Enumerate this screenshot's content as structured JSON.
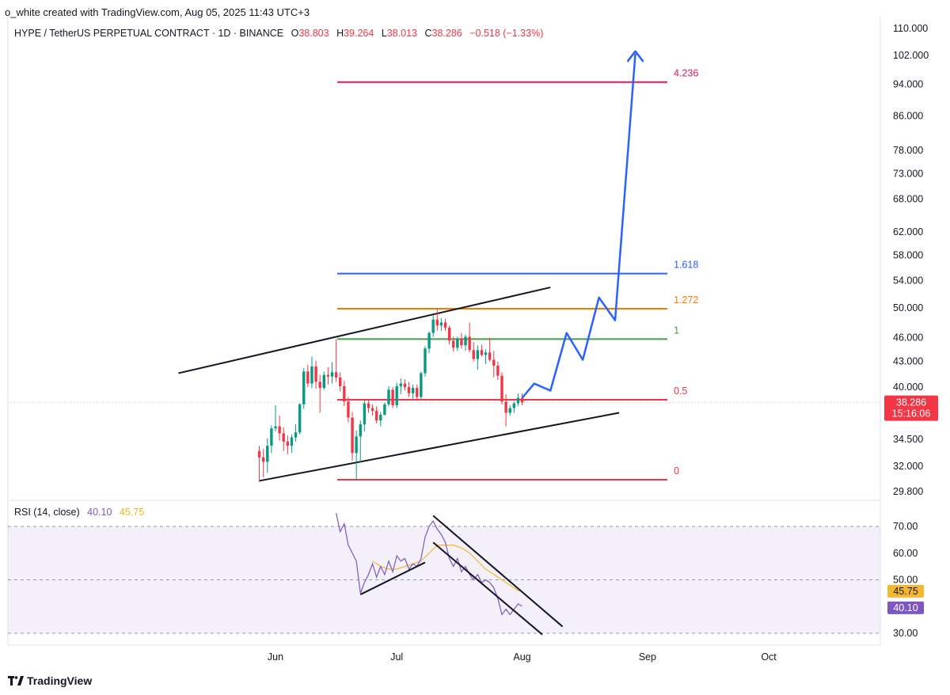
{
  "attribution": "o_white created with TradingView.com, Aug 05, 2025 11:43 UTC+3",
  "legend": {
    "symbol": "HYPE / TetherUS PERPETUAL CONTRACT · 1D · BINANCE",
    "open_label": "O",
    "open": "38.803",
    "high_label": "H",
    "high": "39.264",
    "low_label": "L",
    "low": "38.013",
    "close_label": "C",
    "close": "38.286",
    "change": "−0.518 (−1.33%)"
  },
  "rsi_legend": {
    "label": "RSI (14, close)",
    "rsi_value": "40.10",
    "ma_value": "45.75"
  },
  "footer": {
    "brand": "TradingView"
  },
  "colors": {
    "up": "#089981",
    "down": "#f23645",
    "projection": "#2962ff",
    "rsi": "#7e57c2",
    "rsi_ma": "#f5b82e"
  },
  "chart_data": [
    {
      "type": "candlestick",
      "title": "HYPE / TetherUS PERPETUAL CONTRACT · 1D · BINANCE",
      "y_scale": "log",
      "yticks": [
        "110.000",
        "102.000",
        "94.000",
        "86.000",
        "78.000",
        "73.000",
        "68.000",
        "62.000",
        "58.000",
        "54.000",
        "50.000",
        "46.000",
        "43.000",
        "40.000",
        "34.500",
        "32.000",
        "29.800"
      ],
      "xticks": [
        "Jun",
        "Jul",
        "Aug",
        "Sep",
        "Oct"
      ],
      "last_price": "38.286",
      "countdown": "15:16:06",
      "fib_levels": [
        {
          "label": "4.236",
          "value": 94.6,
          "color": "#d81b60"
        },
        {
          "label": "1.618",
          "value": 55.1,
          "color": "#2962ff"
        },
        {
          "label": "1.272",
          "value": 49.9,
          "color": "#f57c00"
        },
        {
          "label": "1",
          "value": 45.8,
          "color": "#43a047"
        },
        {
          "label": "0.5",
          "value": 38.6,
          "color": "#f23645"
        },
        {
          "label": "0",
          "value": 30.8,
          "color": "#f23645"
        }
      ],
      "candles": [
        {
          "d": "2025-05-28",
          "o": 33.4,
          "h": 33.9,
          "l": 30.6,
          "c": 32.8
        },
        {
          "d": "2025-05-29",
          "o": 32.8,
          "h": 33.6,
          "l": 31.0,
          "c": 32.4
        },
        {
          "d": "2025-05-30",
          "o": 32.4,
          "h": 34.6,
          "l": 31.4,
          "c": 33.9
        },
        {
          "d": "2025-05-31",
          "o": 33.9,
          "h": 35.9,
          "l": 33.2,
          "c": 35.6
        },
        {
          "d": "2025-06-01",
          "o": 35.6,
          "h": 38.0,
          "l": 35.3,
          "c": 35.8
        },
        {
          "d": "2025-06-02",
          "o": 35.8,
          "h": 36.9,
          "l": 34.4,
          "c": 35.1
        },
        {
          "d": "2025-06-03",
          "o": 35.1,
          "h": 35.7,
          "l": 33.4,
          "c": 34.3
        },
        {
          "d": "2025-06-04",
          "o": 34.3,
          "h": 34.9,
          "l": 33.1,
          "c": 33.9
        },
        {
          "d": "2025-06-05",
          "o": 33.9,
          "h": 35.0,
          "l": 33.2,
          "c": 34.7
        },
        {
          "d": "2025-06-06",
          "o": 34.7,
          "h": 36.0,
          "l": 34.3,
          "c": 35.2
        },
        {
          "d": "2025-06-07",
          "o": 35.2,
          "h": 38.2,
          "l": 35.0,
          "c": 38.1
        },
        {
          "d": "2025-06-08",
          "o": 38.1,
          "h": 42.2,
          "l": 37.6,
          "c": 41.8
        },
        {
          "d": "2025-06-09",
          "o": 41.8,
          "h": 42.6,
          "l": 40.0,
          "c": 40.4
        },
        {
          "d": "2025-06-10",
          "o": 40.4,
          "h": 43.6,
          "l": 39.9,
          "c": 42.4
        },
        {
          "d": "2025-06-11",
          "o": 42.4,
          "h": 43.1,
          "l": 39.8,
          "c": 40.6
        },
        {
          "d": "2025-06-12",
          "o": 40.6,
          "h": 41.4,
          "l": 37.2,
          "c": 39.9
        },
        {
          "d": "2025-06-13",
          "o": 39.9,
          "h": 41.8,
          "l": 39.7,
          "c": 41.4
        },
        {
          "d": "2025-06-14",
          "o": 41.4,
          "h": 42.3,
          "l": 40.3,
          "c": 41.2
        },
        {
          "d": "2025-06-15",
          "o": 41.2,
          "h": 42.9,
          "l": 40.4,
          "c": 41.7
        },
        {
          "d": "2025-06-16",
          "o": 41.7,
          "h": 45.8,
          "l": 40.6,
          "c": 41.1
        },
        {
          "d": "2025-06-17",
          "o": 41.1,
          "h": 41.7,
          "l": 39.5,
          "c": 40.1
        },
        {
          "d": "2025-06-18",
          "o": 40.1,
          "h": 40.7,
          "l": 37.9,
          "c": 38.4
        },
        {
          "d": "2025-06-19",
          "o": 38.4,
          "h": 38.9,
          "l": 36.2,
          "c": 36.7
        },
        {
          "d": "2025-06-20",
          "o": 36.7,
          "h": 37.3,
          "l": 32.5,
          "c": 33.2
        },
        {
          "d": "2025-06-21",
          "o": 33.2,
          "h": 35.4,
          "l": 30.8,
          "c": 34.8
        },
        {
          "d": "2025-06-22",
          "o": 34.8,
          "h": 36.4,
          "l": 32.3,
          "c": 36.0
        },
        {
          "d": "2025-06-23",
          "o": 36.0,
          "h": 38.6,
          "l": 35.3,
          "c": 38.2
        },
        {
          "d": "2025-06-24",
          "o": 38.2,
          "h": 38.5,
          "l": 37.2,
          "c": 37.7
        },
        {
          "d": "2025-06-25",
          "o": 37.7,
          "h": 38.1,
          "l": 36.9,
          "c": 37.4
        },
        {
          "d": "2025-06-26",
          "o": 37.4,
          "h": 37.9,
          "l": 36.1,
          "c": 36.4
        },
        {
          "d": "2025-06-27",
          "o": 36.4,
          "h": 37.3,
          "l": 35.8,
          "c": 37.0
        },
        {
          "d": "2025-06-28",
          "o": 37.0,
          "h": 38.3,
          "l": 36.9,
          "c": 38.1
        },
        {
          "d": "2025-06-29",
          "o": 38.1,
          "h": 40.1,
          "l": 37.9,
          "c": 39.7
        },
        {
          "d": "2025-06-30",
          "o": 39.7,
          "h": 40.0,
          "l": 37.7,
          "c": 38.0
        },
        {
          "d": "2025-07-01",
          "o": 38.0,
          "h": 40.5,
          "l": 37.7,
          "c": 40.1
        },
        {
          "d": "2025-07-02",
          "o": 40.1,
          "h": 41.0,
          "l": 39.2,
          "c": 40.4
        },
        {
          "d": "2025-07-03",
          "o": 40.4,
          "h": 40.9,
          "l": 39.6,
          "c": 40.0
        },
        {
          "d": "2025-07-04",
          "o": 40.0,
          "h": 40.6,
          "l": 38.9,
          "c": 39.3
        },
        {
          "d": "2025-07-05",
          "o": 39.3,
          "h": 40.3,
          "l": 38.7,
          "c": 39.9
        },
        {
          "d": "2025-07-06",
          "o": 39.9,
          "h": 40.3,
          "l": 38.6,
          "c": 38.9
        },
        {
          "d": "2025-07-07",
          "o": 38.9,
          "h": 41.8,
          "l": 38.7,
          "c": 41.6
        },
        {
          "d": "2025-07-08",
          "o": 41.6,
          "h": 44.9,
          "l": 41.2,
          "c": 44.6
        },
        {
          "d": "2025-07-09",
          "o": 44.6,
          "h": 46.8,
          "l": 44.0,
          "c": 46.6
        },
        {
          "d": "2025-07-10",
          "o": 46.6,
          "h": 49.0,
          "l": 46.1,
          "c": 48.4
        },
        {
          "d": "2025-07-11",
          "o": 48.4,
          "h": 49.9,
          "l": 46.9,
          "c": 47.6
        },
        {
          "d": "2025-07-12",
          "o": 47.6,
          "h": 48.6,
          "l": 46.9,
          "c": 48.0
        },
        {
          "d": "2025-07-13",
          "o": 48.0,
          "h": 48.5,
          "l": 46.9,
          "c": 47.3
        },
        {
          "d": "2025-07-14",
          "o": 47.3,
          "h": 47.6,
          "l": 45.1,
          "c": 45.6
        },
        {
          "d": "2025-07-15",
          "o": 45.6,
          "h": 46.1,
          "l": 44.2,
          "c": 44.7
        },
        {
          "d": "2025-07-16",
          "o": 44.7,
          "h": 46.1,
          "l": 44.3,
          "c": 45.9
        },
        {
          "d": "2025-07-17",
          "o": 45.9,
          "h": 46.6,
          "l": 44.6,
          "c": 45.0
        },
        {
          "d": "2025-07-18",
          "o": 45.0,
          "h": 46.4,
          "l": 44.3,
          "c": 46.1
        },
        {
          "d": "2025-07-19",
          "o": 46.1,
          "h": 48.0,
          "l": 44.1,
          "c": 44.4
        },
        {
          "d": "2025-07-20",
          "o": 44.4,
          "h": 45.4,
          "l": 43.0,
          "c": 43.3
        },
        {
          "d": "2025-07-21",
          "o": 43.3,
          "h": 45.0,
          "l": 42.0,
          "c": 44.4
        },
        {
          "d": "2025-07-22",
          "o": 44.4,
          "h": 45.1,
          "l": 43.6,
          "c": 43.8
        },
        {
          "d": "2025-07-23",
          "o": 43.8,
          "h": 44.5,
          "l": 42.7,
          "c": 44.1
        },
        {
          "d": "2025-07-24",
          "o": 44.1,
          "h": 46.0,
          "l": 43.0,
          "c": 43.2
        },
        {
          "d": "2025-07-25",
          "o": 43.2,
          "h": 44.3,
          "l": 41.1,
          "c": 42.5
        },
        {
          "d": "2025-07-26",
          "o": 42.5,
          "h": 43.0,
          "l": 40.8,
          "c": 41.3
        },
        {
          "d": "2025-07-27",
          "o": 41.3,
          "h": 41.7,
          "l": 38.1,
          "c": 38.4
        },
        {
          "d": "2025-07-28",
          "o": 38.4,
          "h": 39.2,
          "l": 35.8,
          "c": 37.2
        },
        {
          "d": "2025-07-29",
          "o": 37.2,
          "h": 38.0,
          "l": 36.9,
          "c": 37.7
        },
        {
          "d": "2025-07-30",
          "o": 37.7,
          "h": 38.4,
          "l": 37.2,
          "c": 38.2
        },
        {
          "d": "2025-07-31",
          "o": 38.2,
          "h": 39.3,
          "l": 37.9,
          "c": 38.8
        },
        {
          "d": "2025-08-01",
          "o": 38.8,
          "h": 39.3,
          "l": 38.0,
          "c": 38.3
        }
      ],
      "projection_path": [
        {
          "d": "2025-08-01",
          "v": 38.8
        },
        {
          "d": "2025-08-04",
          "v": 40.4
        },
        {
          "d": "2025-08-08",
          "v": 39.6
        },
        {
          "d": "2025-08-12",
          "v": 46.6
        },
        {
          "d": "2025-08-16",
          "v": 43.2
        },
        {
          "d": "2025-08-20",
          "v": 51.5
        },
        {
          "d": "2025-08-24",
          "v": 48.3
        },
        {
          "d": "2025-08-29",
          "v": 102.5
        }
      ],
      "trendlines": [
        {
          "name": "channel-upper",
          "from": {
            "d": "2025-05-08",
            "v": 41.6
          },
          "to": {
            "d": "2025-08-08",
            "v": 53.0
          }
        },
        {
          "name": "channel-lower",
          "from": {
            "d": "2025-05-28",
            "v": 30.7
          },
          "to": {
            "d": "2025-08-25",
            "v": 37.2
          }
        }
      ]
    },
    {
      "type": "line",
      "title": "RSI (14, close)",
      "ylim": [
        30,
        70
      ],
      "yticks": [
        "70.00",
        "60.00",
        "50.00",
        "30.00"
      ],
      "series": [
        {
          "name": "RSI",
          "values": [
            {
              "d": "2025-06-16",
              "v": 75
            },
            {
              "d": "2025-06-17",
              "v": 68
            },
            {
              "d": "2025-06-18",
              "v": 71
            },
            {
              "d": "2025-06-19",
              "v": 63
            },
            {
              "d": "2025-06-20",
              "v": 60
            },
            {
              "d": "2025-06-21",
              "v": 57
            },
            {
              "d": "2025-06-22",
              "v": 45
            },
            {
              "d": "2025-06-23",
              "v": 49
            },
            {
              "d": "2025-06-24",
              "v": 52
            },
            {
              "d": "2025-06-25",
              "v": 56
            },
            {
              "d": "2025-06-26",
              "v": 51
            },
            {
              "d": "2025-06-27",
              "v": 55
            },
            {
              "d": "2025-06-28",
              "v": 52
            },
            {
              "d": "2025-06-29",
              "v": 57
            },
            {
              "d": "2025-06-30",
              "v": 53
            },
            {
              "d": "2025-07-01",
              "v": 59
            },
            {
              "d": "2025-07-02",
              "v": 57
            },
            {
              "d": "2025-07-03",
              "v": 58
            },
            {
              "d": "2025-07-04",
              "v": 54
            },
            {
              "d": "2025-07-05",
              "v": 56
            },
            {
              "d": "2025-07-06",
              "v": 55
            },
            {
              "d": "2025-07-07",
              "v": 58
            },
            {
              "d": "2025-07-08",
              "v": 66
            },
            {
              "d": "2025-07-09",
              "v": 70
            },
            {
              "d": "2025-07-10",
              "v": 72
            },
            {
              "d": "2025-07-11",
              "v": 69
            },
            {
              "d": "2025-07-12",
              "v": 67
            },
            {
              "d": "2025-07-13",
              "v": 64
            },
            {
              "d": "2025-07-14",
              "v": 58
            },
            {
              "d": "2025-07-15",
              "v": 55
            },
            {
              "d": "2025-07-16",
              "v": 58
            },
            {
              "d": "2025-07-17",
              "v": 53
            },
            {
              "d": "2025-07-18",
              "v": 55
            },
            {
              "d": "2025-07-19",
              "v": 52
            },
            {
              "d": "2025-07-20",
              "v": 50
            },
            {
              "d": "2025-07-21",
              "v": 52
            },
            {
              "d": "2025-07-22",
              "v": 49
            },
            {
              "d": "2025-07-23",
              "v": 50
            },
            {
              "d": "2025-07-24",
              "v": 49
            },
            {
              "d": "2025-07-25",
              "v": 47
            },
            {
              "d": "2025-07-26",
              "v": 43
            },
            {
              "d": "2025-07-27",
              "v": 37
            },
            {
              "d": "2025-07-28",
              "v": 39
            },
            {
              "d": "2025-07-29",
              "v": 37
            },
            {
              "d": "2025-07-30",
              "v": 39
            },
            {
              "d": "2025-07-31",
              "v": 41
            },
            {
              "d": "2025-08-01",
              "v": 40.1
            }
          ]
        },
        {
          "name": "RSI-based MA",
          "values": [
            {
              "d": "2025-06-25",
              "v": 57
            },
            {
              "d": "2025-06-27",
              "v": 55
            },
            {
              "d": "2025-06-29",
              "v": 54
            },
            {
              "d": "2025-07-01",
              "v": 54
            },
            {
              "d": "2025-07-03",
              "v": 55
            },
            {
              "d": "2025-07-05",
              "v": 56
            },
            {
              "d": "2025-07-07",
              "v": 57
            },
            {
              "d": "2025-07-09",
              "v": 60
            },
            {
              "d": "2025-07-11",
              "v": 63
            },
            {
              "d": "2025-07-13",
              "v": 63
            },
            {
              "d": "2025-07-15",
              "v": 63
            },
            {
              "d": "2025-07-17",
              "v": 62
            },
            {
              "d": "2025-07-19",
              "v": 60
            },
            {
              "d": "2025-07-21",
              "v": 57
            },
            {
              "d": "2025-07-23",
              "v": 54
            },
            {
              "d": "2025-07-25",
              "v": 52
            },
            {
              "d": "2025-07-27",
              "v": 50
            },
            {
              "d": "2025-07-29",
              "v": 48
            },
            {
              "d": "2025-07-31",
              "v": 46
            },
            {
              "d": "2025-08-01",
              "v": 45.75
            }
          ]
        }
      ],
      "trendlines": [
        {
          "name": "rsi-support",
          "from": {
            "d": "2025-06-22",
            "v": 44.5
          },
          "to": {
            "d": "2025-07-08",
            "v": 56.5
          }
        },
        {
          "name": "rsi-channel-upper",
          "from": {
            "d": "2025-07-10",
            "v": 74
          },
          "to": {
            "d": "2025-08-11",
            "v": 32.5
          }
        },
        {
          "name": "rsi-channel-lower",
          "from": {
            "d": "2025-07-10",
            "v": 64
          },
          "to": {
            "d": "2025-08-06",
            "v": 29.5
          }
        }
      ]
    }
  ]
}
